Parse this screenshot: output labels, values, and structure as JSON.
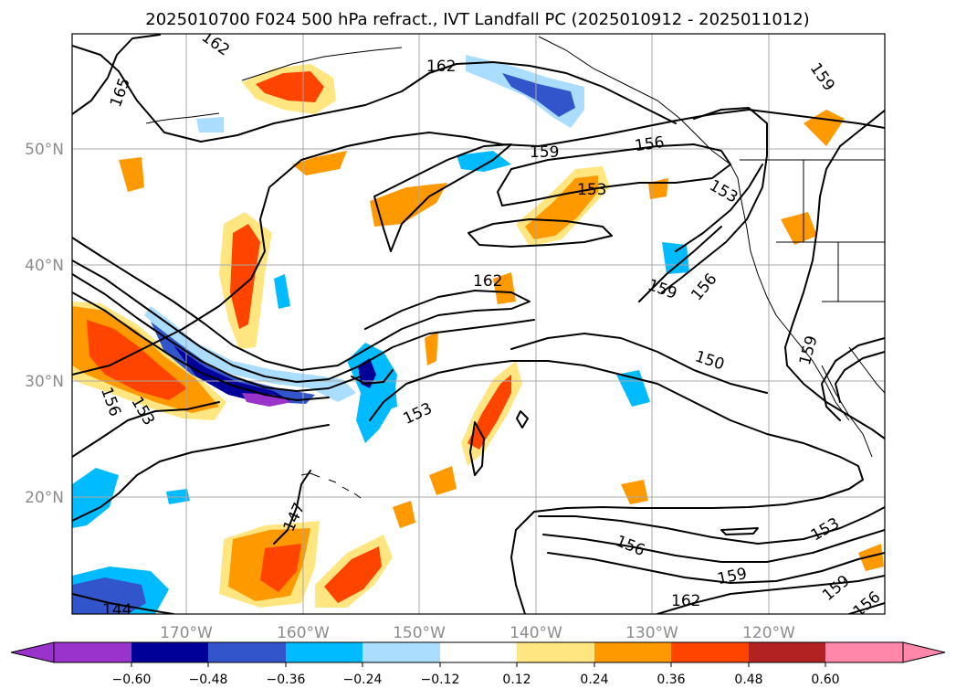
{
  "title": "2025010700 F024 500 hPa refract., IVT Landfall PC (2025010912 - 2025011012)",
  "axes": {
    "longitude_labels": [
      "170°W",
      "160°W",
      "150°W",
      "140°W",
      "130°W",
      "120°W"
    ],
    "latitude_labels": [
      "50°N",
      "40°N",
      "30°N",
      "20°N"
    ]
  },
  "contour_labels": [
    "162",
    "165",
    "162",
    "159",
    "159",
    "156",
    "153",
    "153",
    "159",
    "156",
    "162",
    "150",
    "156",
    "153",
    "153",
    "147",
    "159",
    "153",
    "156",
    "159",
    "162",
    "159",
    "156",
    "144"
  ],
  "colorbar": {
    "ticks": [
      "−0.60",
      "−0.48",
      "−0.36",
      "−0.24",
      "−0.12",
      "0.12",
      "0.24",
      "0.36",
      "0.48",
      "0.60"
    ],
    "colors": [
      "#9933cc",
      "#000099",
      "#3355cc",
      "#00bbff",
      "#aaddff",
      "#ffffff",
      "#ffe680",
      "#ff9900",
      "#ff4400",
      "#b22222",
      "#ff88aa"
    ]
  },
  "shading_colors": {
    "light_yellow": "#ffe680",
    "orange": "#ff9900",
    "red_orange": "#ff4400",
    "light_blue": "#aaddff",
    "cyan": "#00bbff",
    "blue": "#3355cc",
    "navy": "#000099",
    "purple": "#9933cc"
  }
}
